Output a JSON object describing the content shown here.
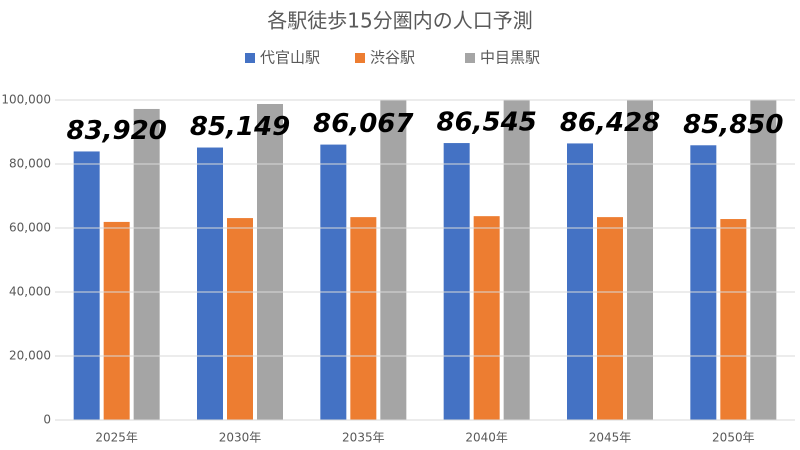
{
  "chart_data": {
    "type": "bar",
    "title": "各駅徒歩15分圏内の人口予測",
    "categories": [
      "2025年",
      "2030年",
      "2035年",
      "2040年",
      "2045年",
      "2050年"
    ],
    "series": [
      {
        "name": "代官山駅",
        "color": "#4472c4",
        "values": [
          83920,
          85149,
          86067,
          86545,
          86428,
          85850
        ],
        "value_labels": [
          "83,920",
          "85,149",
          "86,067",
          "86,545",
          "86,428",
          "85,850"
        ]
      },
      {
        "name": "渋谷駅",
        "color": "#ed7d31",
        "values": [
          61900,
          63100,
          63400,
          63700,
          63400,
          62800
        ]
      },
      {
        "name": "中目黒駅",
        "color": "#a5a5a5",
        "values": [
          97200,
          98750,
          100500,
          100800,
          100900,
          100600
        ]
      }
    ],
    "ylim": [
      0,
      100000
    ],
    "yticks": [
      0,
      {
        "value": 20000,
        "label": "20,000"
      },
      {
        "value": 40000,
        "label": "40,000"
      },
      {
        "value": 60000,
        "label": "60,000"
      },
      {
        "value": 80000,
        "label": "80,000"
      },
      {
        "value": 100000,
        "label": "100,000"
      }
    ],
    "grid": true,
    "legend": "top"
  }
}
